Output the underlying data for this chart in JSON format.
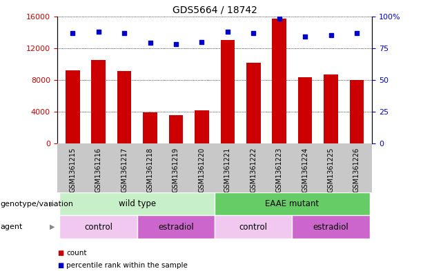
{
  "title": "GDS5664 / 18742",
  "samples": [
    "GSM1361215",
    "GSM1361216",
    "GSM1361217",
    "GSM1361218",
    "GSM1361219",
    "GSM1361220",
    "GSM1361221",
    "GSM1361222",
    "GSM1361223",
    "GSM1361224",
    "GSM1361225",
    "GSM1361226"
  ],
  "counts": [
    9200,
    10500,
    9100,
    3900,
    3600,
    4200,
    13000,
    10200,
    15700,
    8300,
    8700,
    8000
  ],
  "percentiles": [
    87,
    88,
    87,
    79,
    78,
    80,
    88,
    87,
    98,
    84,
    85,
    87
  ],
  "ylim_left": [
    0,
    16000
  ],
  "ylim_right": [
    0,
    100
  ],
  "yticks_left": [
    0,
    4000,
    8000,
    12000,
    16000
  ],
  "yticks_right": [
    0,
    25,
    50,
    75,
    100
  ],
  "bar_color": "#cc0000",
  "dot_color": "#0000cc",
  "bg_color": "#ffffff",
  "genotype_wild_type_color": "#c8f0c8",
  "genotype_eaae_color": "#66cc66",
  "agent_control_color": "#f0c8f0",
  "agent_estradiol_color": "#cc66cc",
  "tick_bg_color": "#c8c8c8",
  "left_axis_color": "#cc0000",
  "right_axis_color": "#0000cc",
  "title_fontsize": 10,
  "bar_width": 0.55
}
